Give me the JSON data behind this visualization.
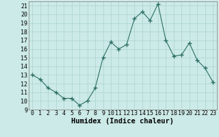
{
  "x": [
    0,
    1,
    2,
    3,
    4,
    5,
    6,
    7,
    8,
    9,
    10,
    11,
    12,
    13,
    14,
    15,
    16,
    17,
    18,
    19,
    20,
    21,
    22,
    23
  ],
  "y": [
    13,
    12.5,
    11.5,
    11,
    10.3,
    10.3,
    9.5,
    10,
    11.5,
    15,
    16.8,
    16,
    16.5,
    19.5,
    20.3,
    19.3,
    21.2,
    17,
    15.2,
    15.3,
    16.7,
    14.7,
    13.8,
    12.2
  ],
  "xlabel": "Humidex (Indice chaleur)",
  "line_color": "#2a6e62",
  "marker": "+",
  "marker_size": 4,
  "bg_color": "#cceae7",
  "grid_color": "#aad4d0",
  "ylim": [
    9,
    21.5
  ],
  "xlim": [
    -0.5,
    23.5
  ],
  "yticks": [
    9,
    10,
    11,
    12,
    13,
    14,
    15,
    16,
    17,
    18,
    19,
    20,
    21
  ],
  "xticks": [
    0,
    1,
    2,
    3,
    4,
    5,
    6,
    7,
    8,
    9,
    10,
    11,
    12,
    13,
    14,
    15,
    16,
    17,
    18,
    19,
    20,
    21,
    22,
    23
  ],
  "tick_fontsize": 6,
  "xlabel_fontsize": 7.5
}
